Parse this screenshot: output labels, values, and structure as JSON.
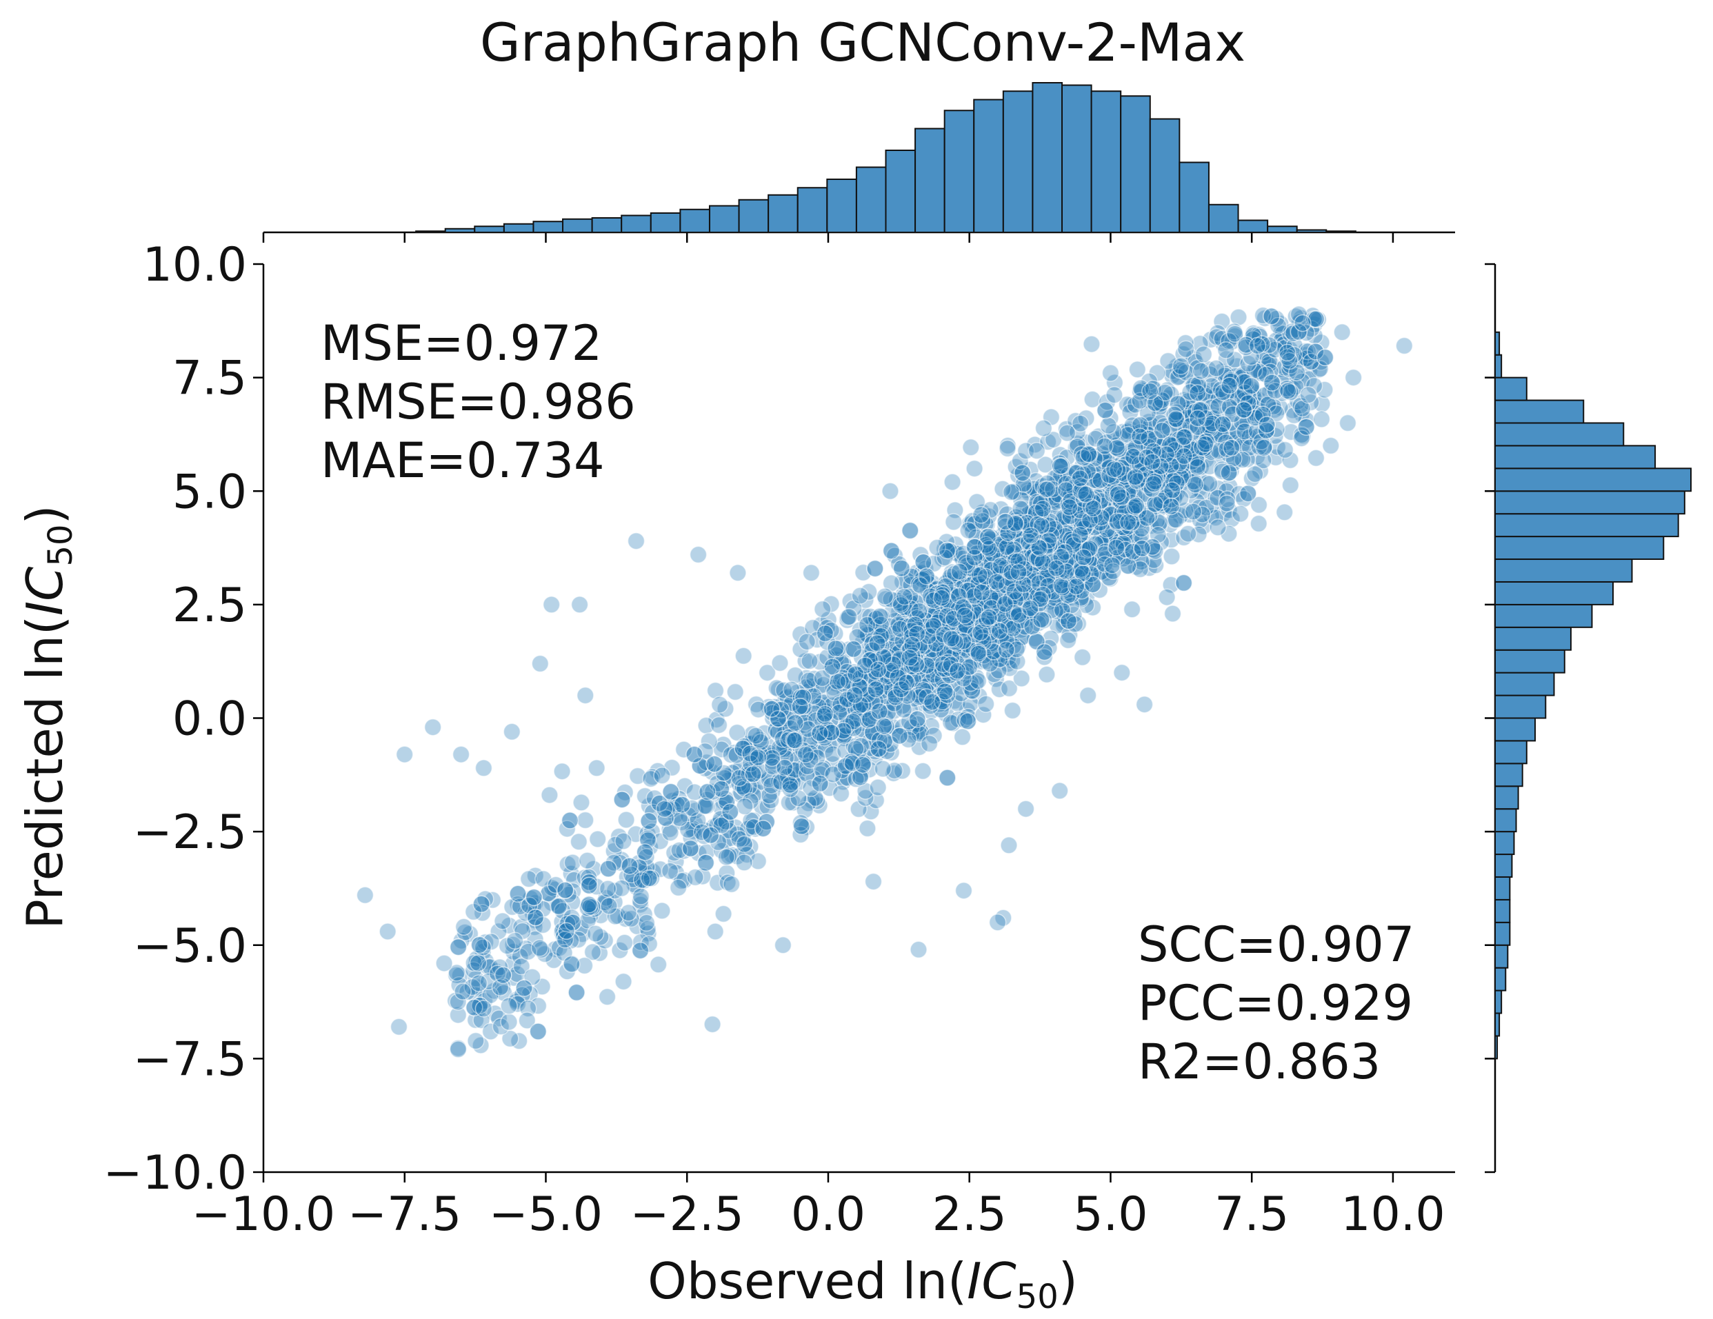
{
  "chart_data": {
    "type": "scatter",
    "title": "GraphGraph GCNConv-2-Max",
    "xlabel": {
      "prefix": "Observed ln(",
      "var": "IC",
      "sub": "50",
      "suffix": ")"
    },
    "ylabel": {
      "prefix": "Predicted ln(",
      "var": "IC",
      "sub": "50",
      "suffix": ")"
    },
    "xlim": [
      -10,
      11.1
    ],
    "ylim": [
      -10,
      10
    ],
    "xticks": [
      -10.0,
      -7.5,
      -5.0,
      -2.5,
      0.0,
      2.5,
      5.0,
      7.5,
      10.0
    ],
    "yticks": [
      -10.0,
      -7.5,
      -5.0,
      -2.5,
      0.0,
      2.5,
      5.0,
      7.5,
      10.0
    ],
    "xtick_labels": [
      "−10.0",
      "−7.5",
      "−5.0",
      "−2.5",
      "0.0",
      "2.5",
      "5.0",
      "7.5",
      "10.0"
    ],
    "ytick_labels": [
      "−10.0",
      "−7.5",
      "−5.0",
      "−2.5",
      "0.0",
      "2.5",
      "5.0",
      "7.5",
      "10.0"
    ],
    "grid": false,
    "annotations_top_left": [
      "MSE=0.972",
      "RMSE=0.986",
      "MAE=0.734"
    ],
    "annotations_bottom_right": [
      "SCC=0.907",
      "PCC=0.929",
      "R2=0.863"
    ],
    "point_color": "#1f77b4",
    "hist_color": "#4a90c4",
    "outlier_points": [
      [
        -8.2,
        -3.9
      ],
      [
        -7.8,
        -4.7
      ],
      [
        -7.5,
        -0.8
      ],
      [
        -7.6,
        -6.8
      ],
      [
        -7.0,
        -0.2
      ],
      [
        -6.5,
        -0.8
      ],
      [
        -6.1,
        -1.1
      ],
      [
        -5.6,
        -0.3
      ],
      [
        -5.1,
        1.2
      ],
      [
        -4.9,
        2.5
      ],
      [
        -4.4,
        2.5
      ],
      [
        -4.3,
        0.5
      ],
      [
        -4.1,
        -1.1
      ],
      [
        -3.4,
        3.9
      ],
      [
        -2.3,
        3.6
      ],
      [
        -1.6,
        3.2
      ],
      [
        -0.3,
        3.2
      ],
      [
        1.1,
        5.0
      ],
      [
        2.2,
        5.2
      ],
      [
        5.0,
        7.6
      ],
      [
        5.7,
        7.2
      ],
      [
        7.6,
        8.2
      ],
      [
        8.4,
        8.7
      ],
      [
        9.1,
        8.5
      ],
      [
        10.2,
        8.2
      ],
      [
        9.3,
        7.5
      ],
      [
        9.2,
        6.5
      ],
      [
        8.9,
        6.0
      ],
      [
        5.6,
        0.3
      ],
      [
        5.2,
        1.0
      ],
      [
        4.6,
        0.5
      ],
      [
        3.1,
        -4.4
      ],
      [
        3.0,
        -4.5
      ],
      [
        2.4,
        -3.8
      ],
      [
        1.6,
        -5.1
      ],
      [
        0.8,
        -3.6
      ],
      [
        -0.8,
        -5.0
      ],
      [
        -2.0,
        -4.7
      ],
      [
        -6.8,
        -5.4
      ],
      [
        -6.1,
        -6.4
      ],
      [
        -2.9,
        -2.0
      ],
      [
        -0.1,
        2.4
      ],
      [
        3.2,
        -2.8
      ],
      [
        3.5,
        -2.0
      ],
      [
        4.1,
        -1.6
      ],
      [
        6.1,
        2.3
      ],
      [
        6.9,
        4.2
      ],
      [
        7.3,
        4.5
      ]
    ],
    "main_band": {
      "x_min": -6.6,
      "x_max": 8.8,
      "slope": 0.95,
      "intercept": 0.0,
      "spread": 1.0
    },
    "x_histogram": {
      "bin_edges": [
        -7.3,
        -6.78,
        -6.26,
        -5.74,
        -5.22,
        -4.7,
        -4.18,
        -3.66,
        -3.14,
        -2.62,
        -2.1,
        -1.58,
        -1.06,
        -0.54,
        -0.02,
        0.5,
        1.02,
        1.54,
        2.06,
        2.58,
        3.1,
        3.62,
        4.14,
        4.66,
        5.18,
        5.7,
        6.22,
        6.74,
        7.26,
        7.78,
        8.3,
        8.82,
        9.34
      ],
      "counts": [
        1,
        3,
        5,
        7,
        9,
        11,
        12,
        14,
        16,
        19,
        22,
        27,
        31,
        37,
        44,
        54,
        68,
        86,
        101,
        110,
        117,
        124,
        122,
        117,
        113,
        94,
        58,
        23,
        10,
        5,
        2,
        1
      ]
    },
    "y_histogram": {
      "bin_edges": [
        -7.5,
        -7.0,
        -6.5,
        -6.0,
        -5.5,
        -5.0,
        -4.5,
        -4.0,
        -3.5,
        -3.0,
        -2.5,
        -2.0,
        -1.5,
        -1.0,
        -0.5,
        0.0,
        0.5,
        1.0,
        1.5,
        2.0,
        2.5,
        3.0,
        3.5,
        4.0,
        4.5,
        5.0,
        5.5,
        6.0,
        6.5,
        7.0,
        7.5,
        8.0,
        8.5
      ],
      "counts": [
        1,
        2,
        3,
        5,
        6,
        7,
        7,
        7,
        8,
        9,
        10,
        11,
        13,
        15,
        19,
        24,
        28,
        33,
        36,
        46,
        56,
        65,
        80,
        87,
        90,
        93,
        76,
        61,
        42,
        15,
        3,
        2
      ]
    }
  }
}
